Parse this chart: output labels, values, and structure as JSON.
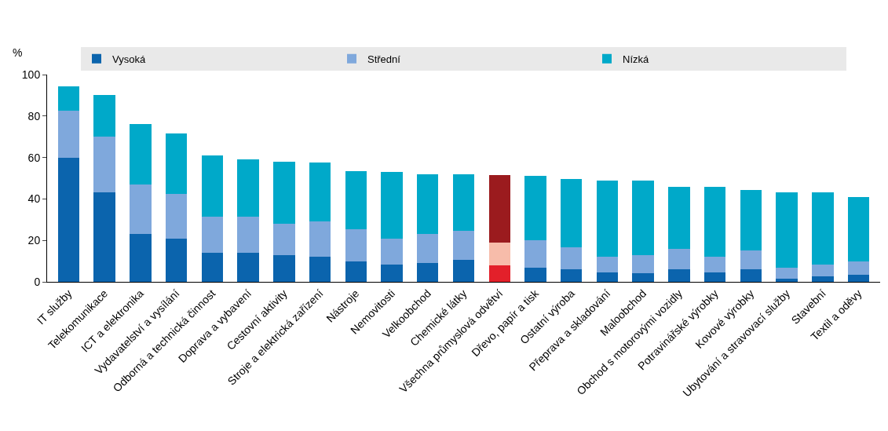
{
  "chart_data": {
    "type": "bar",
    "stacked": true,
    "ylabel": "%",
    "ylim": [
      0,
      100
    ],
    "yticks": [
      0,
      20,
      40,
      60,
      80,
      100
    ],
    "legend": "top",
    "categories": [
      "IT služby",
      "Telekomunikace",
      "ICT a elektronika",
      "Vydavatelství a vysílání",
      "Odborná a technická činnost",
      "Doprava a vybavení",
      "Cestovní aktivity",
      "Stroje a elektrická zařízení",
      "Nástroje",
      "Nemovitosti",
      "Velkoobchod",
      "Chemické látky",
      "Všechna průmyslová odvětví",
      "Dřevo, papír a tisk",
      "Ostatní výroba",
      "Přeprava a skladování",
      "Maloobchod",
      "Obchod s motorovými vozidly",
      "Potravinářské výrobky",
      "Kovové výrobky",
      "Ubytování a stravovací služby",
      "Stavební",
      "Textil a oděvy"
    ],
    "series": [
      {
        "name": "Vysoká",
        "color": "#0b64ad",
        "colors": [
          "#0b64ad",
          "#0b64ad",
          "#0b64ad",
          "#0b64ad",
          "#0b64ad",
          "#0b64ad",
          "#0b64ad",
          "#0b64ad",
          "#0b64ad",
          "#0b64ad",
          "#0b64ad",
          "#0b64ad",
          "#e3202a",
          "#0b64ad",
          "#0b64ad",
          "#0b64ad",
          "#0b64ad",
          "#0b64ad",
          "#0b64ad",
          "#0b64ad",
          "#0b64ad",
          "#0b64ad",
          "#0b64ad"
        ],
        "values": [
          60,
          43,
          23,
          21,
          14,
          14,
          13,
          12,
          10,
          8.5,
          9,
          10.5,
          8,
          7,
          6,
          4.5,
          4,
          6,
          4.5,
          6,
          1.5,
          2.5,
          3.5
        ]
      },
      {
        "name": "Střední",
        "color": "#7fa8dc",
        "colors": [
          "#7fa8dc",
          "#7fa8dc",
          "#7fa8dc",
          "#7fa8dc",
          "#7fa8dc",
          "#7fa8dc",
          "#7fa8dc",
          "#7fa8dc",
          "#7fa8dc",
          "#7fa8dc",
          "#7fa8dc",
          "#7fa8dc",
          "#f7bcaa",
          "#7fa8dc",
          "#7fa8dc",
          "#7fa8dc",
          "#7fa8dc",
          "#7fa8dc",
          "#7fa8dc",
          "#7fa8dc",
          "#7fa8dc",
          "#7fa8dc",
          "#7fa8dc"
        ],
        "values": [
          22.5,
          27,
          24,
          21.5,
          17.5,
          17.5,
          15,
          17,
          15.5,
          12.5,
          14,
          14,
          11,
          13,
          10.5,
          7.5,
          9,
          10,
          7.5,
          9,
          5.5,
          6,
          6.5
        ]
      },
      {
        "name": "Nízká",
        "color": "#00a9c9",
        "colors": [
          "#00a9c9",
          "#00a9c9",
          "#00a9c9",
          "#00a9c9",
          "#00a9c9",
          "#00a9c9",
          "#00a9c9",
          "#00a9c9",
          "#00a9c9",
          "#00a9c9",
          "#00a9c9",
          "#00a9c9",
          "#9b1b1e",
          "#00a9c9",
          "#00a9c9",
          "#00a9c9",
          "#00a9c9",
          "#00a9c9",
          "#00a9c9",
          "#00a9c9",
          "#00a9c9",
          "#00a9c9",
          "#00a9c9"
        ],
        "values": [
          12,
          20,
          29,
          29,
          29.5,
          27.5,
          30,
          28.5,
          28,
          32,
          29,
          27.5,
          32.5,
          31,
          33,
          37,
          36,
          30,
          34,
          29.5,
          36,
          34.5,
          31
        ]
      }
    ]
  }
}
